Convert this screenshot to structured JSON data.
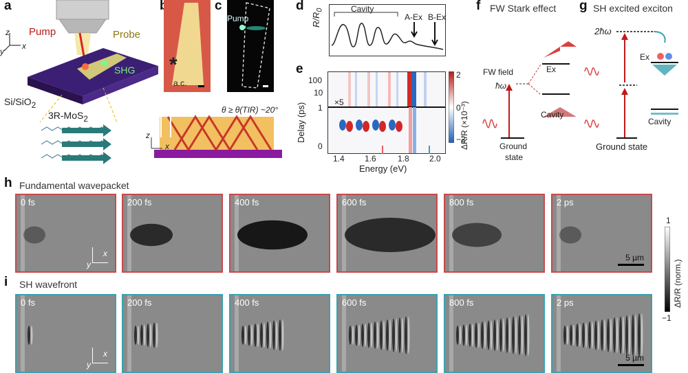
{
  "panels": {
    "a": {
      "letter": "a",
      "pump": "Pump",
      "probe": "Probe",
      "shg": "SHG",
      "substrate": "Si/SiO",
      "substrate_sub": "2",
      "material": "3R-MoS",
      "material_sub": "2",
      "z": "z",
      "y": "y",
      "x": "x"
    },
    "b": {
      "letter": "b",
      "marker": "*",
      "ac": "a.c."
    },
    "c": {
      "letter": "c",
      "pump": "Pump"
    },
    "cross": {
      "angle": "θ ≥ θ(TIR) ~20°",
      "z": "z",
      "x": "x"
    },
    "d": {
      "letter": "d",
      "ylabel": "R/R",
      "ylabel_sub": "0",
      "cavity": "Cavity",
      "aex": "A-Ex",
      "bex": "B-Ex"
    },
    "e": {
      "letter": "e",
      "ylabel": "Delay (ps)",
      "xlabel": "Energy (eV)",
      "times5": "×5",
      "yticks": [
        "100",
        "10",
        "1",
        "0"
      ],
      "xticks": [
        "1.4",
        "1.6",
        "1.8",
        "2.0"
      ],
      "cbar_label": "ΔR/R (×10⁻³)",
      "cbar_top": "2",
      "cbar_mid": "0",
      "cbar_bot": "−2"
    },
    "f": {
      "letter": "f",
      "title": "FW Stark effect",
      "field": "FW field",
      "hw": "ħω",
      "ex": "Ex",
      "cavity": "Cavity",
      "ground1": "Ground",
      "ground2": "state"
    },
    "g": {
      "letter": "g",
      "title": "SH excited exciton",
      "two_hw": "2ħω",
      "ex": "Ex",
      "cavity": "Cavity",
      "ground": "Ground state"
    },
    "h": {
      "letter": "h",
      "title": "Fundamental wavepacket",
      "frames": [
        "0 fs",
        "200 fs",
        "400 fs",
        "600 fs",
        "800 fs",
        "2 ps"
      ],
      "scale": "5 µm",
      "x": "x",
      "y": "y"
    },
    "i": {
      "letter": "i",
      "title": "SH wavefront",
      "frames": [
        "0 fs",
        "200 fs",
        "400 fs",
        "600 fs",
        "800 fs",
        "2 ps"
      ],
      "scale": "5 µm",
      "x": "x",
      "y": "y"
    },
    "gray_cbar": {
      "top": "1",
      "label": "ΔR/R (norm.)",
      "bottom": "−1"
    }
  },
  "colors": {
    "red": "#c8494b",
    "teal": "#3aa1b0",
    "dark_red": "#b31b1b",
    "blue": "#2060b0",
    "purple": "#5a2a8a"
  }
}
